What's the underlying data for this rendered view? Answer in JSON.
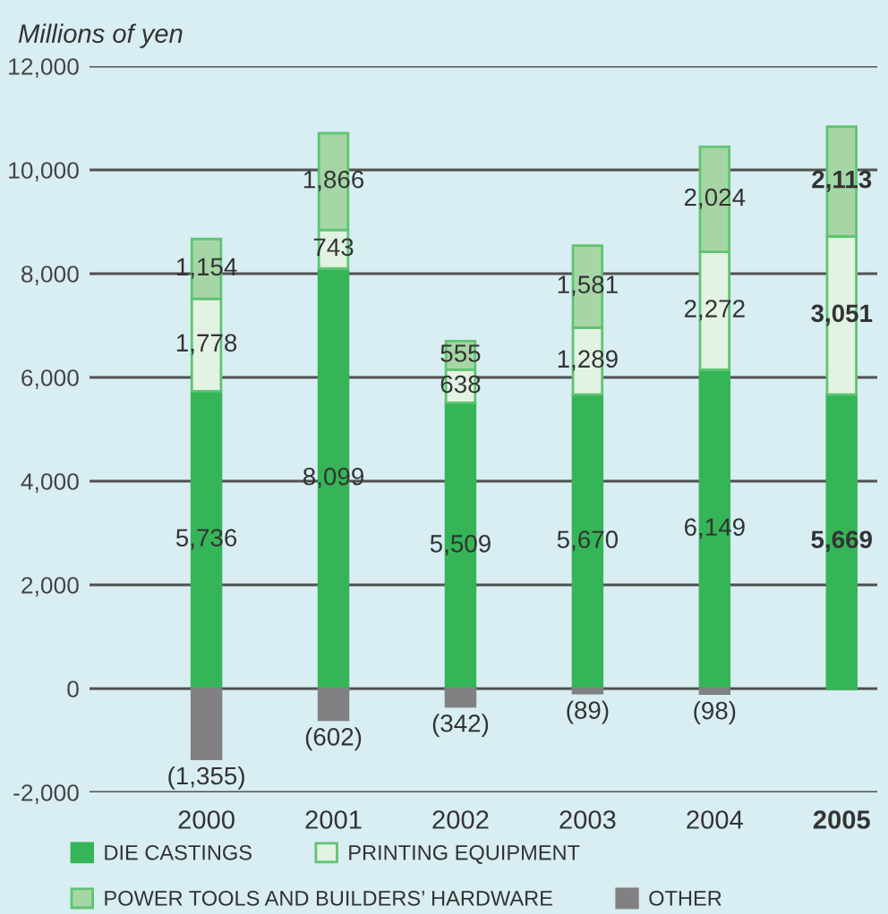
{
  "chart_data": {
    "type": "bar",
    "stacked": true,
    "ylabel": "Millions of yen",
    "categories": [
      "2000",
      "2001",
      "2002",
      "2003",
      "2004",
      "2005"
    ],
    "series": [
      {
        "name": "DIE CASTINGS",
        "color": "#35b557",
        "values": [
          5736,
          8099,
          5509,
          5670,
          6149,
          5669
        ],
        "value_labels": [
          "5,736",
          "8,099",
          "5,509",
          "5,670",
          "6,149",
          "5,669"
        ]
      },
      {
        "name": "PRINTING EQUIPMENT",
        "color": "#e2f2e3",
        "values": [
          1778,
          743,
          638,
          1289,
          2272,
          3051
        ],
        "value_labels": [
          "1,778",
          "743",
          "638",
          "1,289",
          "2,272",
          "3,051"
        ]
      },
      {
        "name": "POWER TOOLS AND BUILDERS’ HARDWARE",
        "color": "#a6d6a6",
        "values": [
          1154,
          1866,
          555,
          1581,
          2024,
          2113
        ],
        "value_labels": [
          "1,154",
          "1,866",
          "555",
          "1,581",
          "2,024",
          "2,113"
        ]
      },
      {
        "name": "OTHER",
        "color": "#818184",
        "values": [
          -1355,
          -602,
          -342,
          -89,
          -98,
          null
        ],
        "value_labels": [
          "(1,355)",
          "(602)",
          "(342)",
          "(89)",
          "(98)",
          null
        ]
      }
    ],
    "ylim": [
      -2000,
      12000
    ],
    "yticks": [
      {
        "value": -2000,
        "label": "-2,000"
      },
      0,
      {
        "value": 2000,
        "label": "2,000"
      },
      {
        "value": 4000,
        "label": "4,000"
      },
      {
        "value": 6000,
        "label": "6,000"
      },
      {
        "value": 8000,
        "label": "8,000"
      },
      {
        "value": 10000,
        "label": "10,000"
      },
      {
        "value": 12000,
        "label": "12,000"
      }
    ],
    "grid": "y",
    "legend": "bottom"
  }
}
